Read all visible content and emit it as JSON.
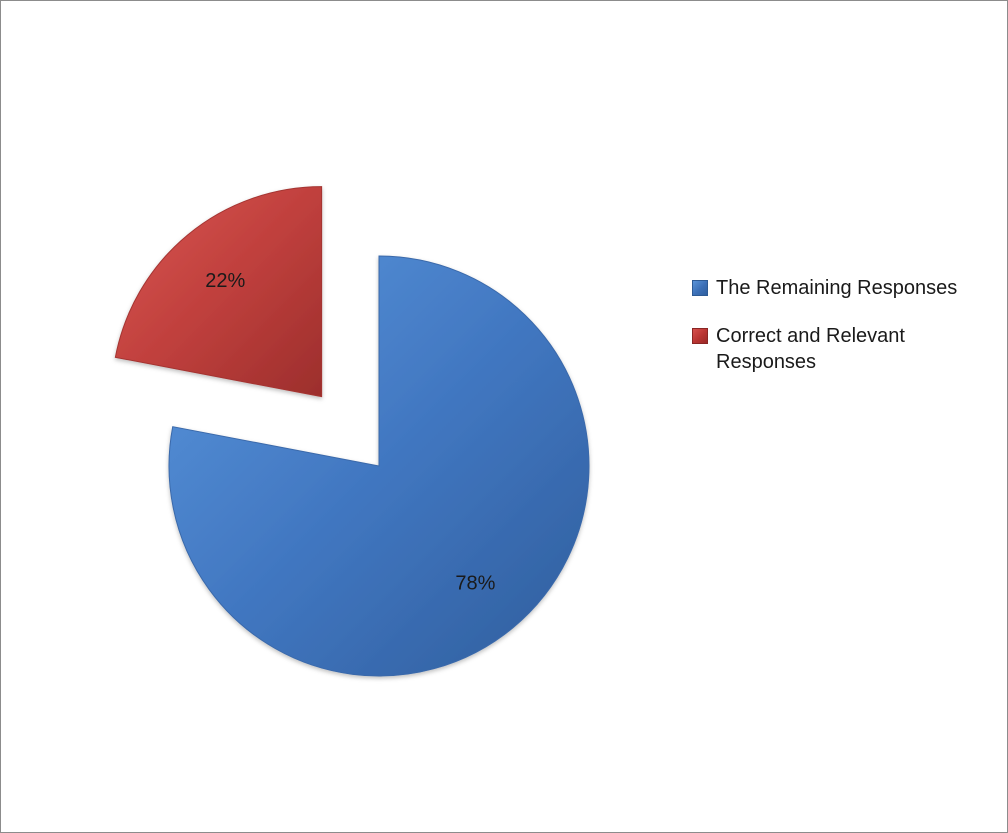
{
  "chart_data": {
    "type": "pie",
    "title": "",
    "slices": [
      {
        "name": "The Remaining Responses",
        "value": 78,
        "label": "78%",
        "color": "#4177C1",
        "exploded": false
      },
      {
        "name": "Correct and Relevant Responses",
        "value": 22,
        "label": "22%",
        "color": "#C0403D",
        "exploded": true
      }
    ],
    "legend_position": "right"
  }
}
